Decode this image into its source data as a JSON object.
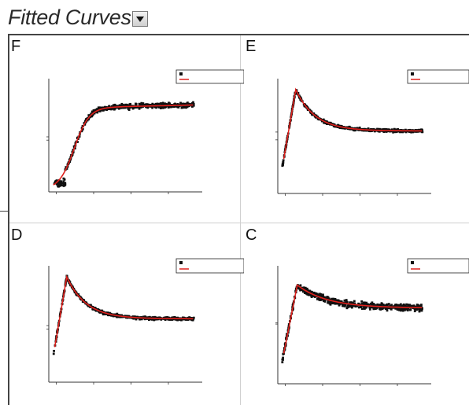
{
  "title": "Fitted Curves",
  "colors": {
    "data": "#111111",
    "fit": "#e0201c",
    "axis": "#333333"
  },
  "panels": [
    {
      "id": "F",
      "label": "F",
      "legend": [
        "",
        ""
      ],
      "shape": "sigmoid",
      "yTicks": [
        "",
        ""
      ],
      "xTicks": [
        "",
        "",
        "",
        ""
      ],
      "xLabel": "",
      "yLabel": ""
    },
    {
      "id": "E",
      "label": "E",
      "legend": [
        "",
        ""
      ],
      "shape": "peak",
      "yTicks": [
        "",
        ""
      ],
      "xTicks": [
        "",
        "",
        "",
        ""
      ],
      "xLabel": "",
      "yLabel": ""
    },
    {
      "id": "D",
      "label": "D",
      "legend": [
        "",
        ""
      ],
      "shape": "peak",
      "yTicks": [
        "",
        ""
      ],
      "xTicks": [
        "",
        "",
        "",
        ""
      ],
      "xLabel": "",
      "yLabel": ""
    },
    {
      "id": "C",
      "label": "C",
      "legend": [
        "",
        ""
      ],
      "shape": "noisy-peak",
      "yTicks": [
        "",
        "",
        "",
        ""
      ],
      "xTicks": [
        "",
        "",
        "",
        ""
      ],
      "xLabel": "",
      "yLabel": ""
    }
  ],
  "chart_data": [
    {
      "type": "scatter",
      "title": "",
      "series": [
        {
          "name": "",
          "kind": "scatter"
        },
        {
          "name": "",
          "kind": "fit-line"
        }
      ],
      "xlim": [
        0,
        1
      ],
      "ylim": [
        0,
        1
      ]
    },
    {
      "type": "scatter",
      "title": "",
      "series": [
        {
          "name": "",
          "kind": "scatter"
        },
        {
          "name": "",
          "kind": "fit-line"
        }
      ],
      "xlim": [
        0,
        1
      ],
      "ylim": [
        0,
        1
      ]
    },
    {
      "type": "scatter",
      "title": "",
      "series": [
        {
          "name": "",
          "kind": "scatter"
        },
        {
          "name": "",
          "kind": "fit-line"
        }
      ],
      "xlim": [
        0,
        1
      ],
      "ylim": [
        0,
        1
      ]
    },
    {
      "type": "scatter",
      "title": "",
      "series": [
        {
          "name": "",
          "kind": "scatter"
        },
        {
          "name": "",
          "kind": "fit-line"
        }
      ],
      "xlim": [
        0,
        1
      ],
      "ylim": [
        0,
        1
      ]
    }
  ]
}
